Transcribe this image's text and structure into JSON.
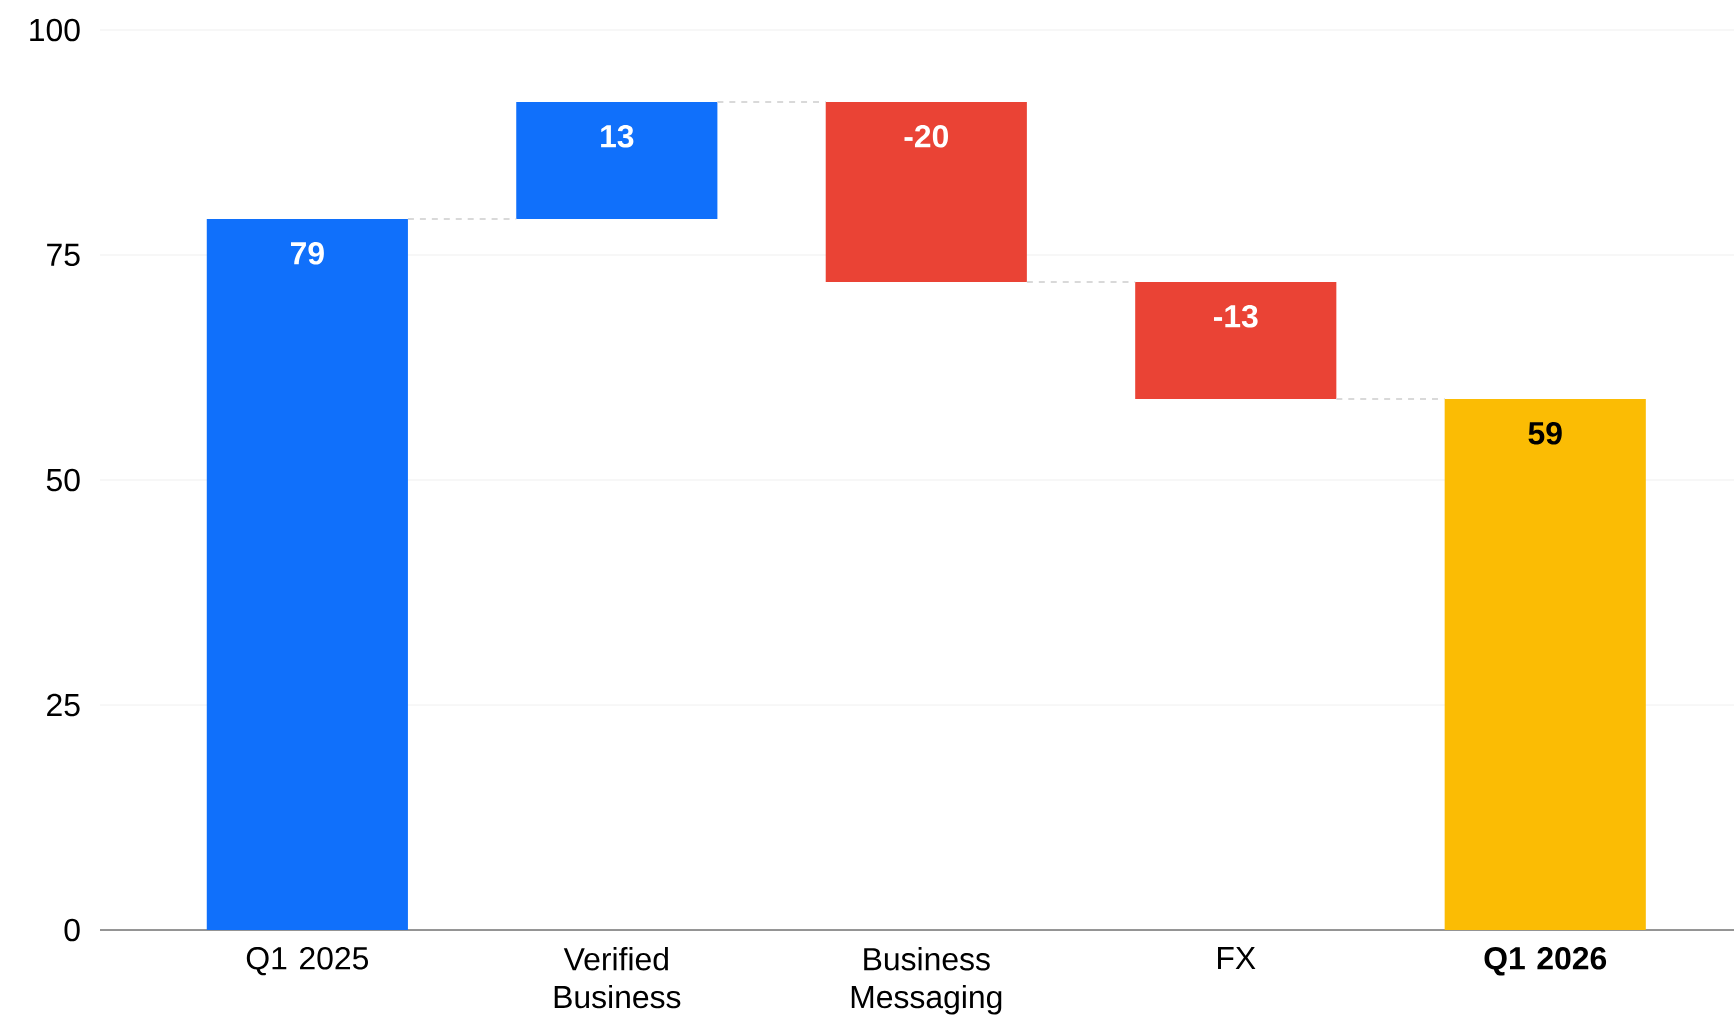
{
  "chart_data": {
    "type": "bar",
    "categories": [
      "Q1 2025",
      "Verified Business",
      "Business Messaging",
      "FX",
      "**Q1 2026**"
    ],
    "values": [
      79,
      13,
      -20,
      -13,
      59
    ],
    "base": [
      0,
      79,
      92,
      72,
      0
    ],
    "colors": [
      "#1070fb",
      "#1070fb",
      "#ea4335",
      "#ea4335",
      "#fbbc04"
    ],
    "ylim": [
      0,
      100
    ],
    "yticks": [
      0,
      25,
      50,
      75,
      100
    ],
    "grid": "y",
    "data_labels": true
  }
}
